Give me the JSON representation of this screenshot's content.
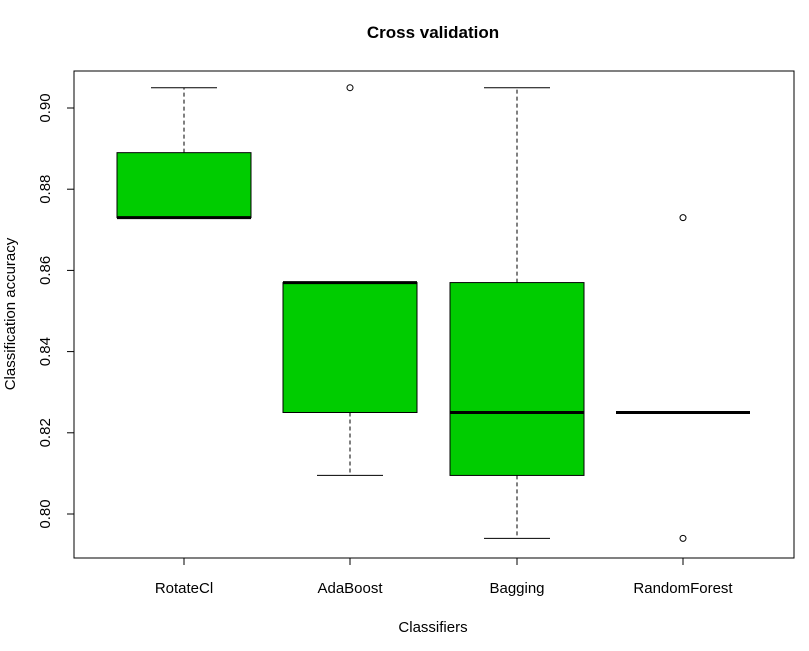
{
  "chart_data": {
    "type": "boxplot",
    "title": "Cross validation",
    "xlabel": "Classifiers",
    "ylabel": "Classification accuracy",
    "ylim": [
      0.79,
      0.91
    ],
    "yticks": [
      "0.80",
      "0.82",
      "0.84",
      "0.86",
      "0.88",
      "0.90"
    ],
    "grid": false,
    "box_color": "#00cc00",
    "categories": [
      "RotateCl",
      "AdaBoost",
      "Bagging",
      "RandomForest"
    ],
    "boxes": [
      {
        "name": "RotateCl",
        "whisker_low": 0.873,
        "q1": 0.873,
        "median": 0.873,
        "q3": 0.889,
        "whisker_high": 0.905,
        "outliers": []
      },
      {
        "name": "AdaBoost",
        "whisker_low": 0.8095,
        "q1": 0.825,
        "median": 0.857,
        "q3": 0.857,
        "whisker_high": 0.857,
        "outliers": [
          0.905
        ]
      },
      {
        "name": "Bagging",
        "whisker_low": 0.794,
        "q1": 0.8095,
        "median": 0.825,
        "q3": 0.857,
        "whisker_high": 0.905,
        "outliers": []
      },
      {
        "name": "RandomForest",
        "whisker_low": 0.825,
        "q1": 0.825,
        "median": 0.825,
        "q3": 0.825,
        "whisker_high": 0.825,
        "outliers": [
          0.873,
          0.794
        ]
      }
    ]
  }
}
